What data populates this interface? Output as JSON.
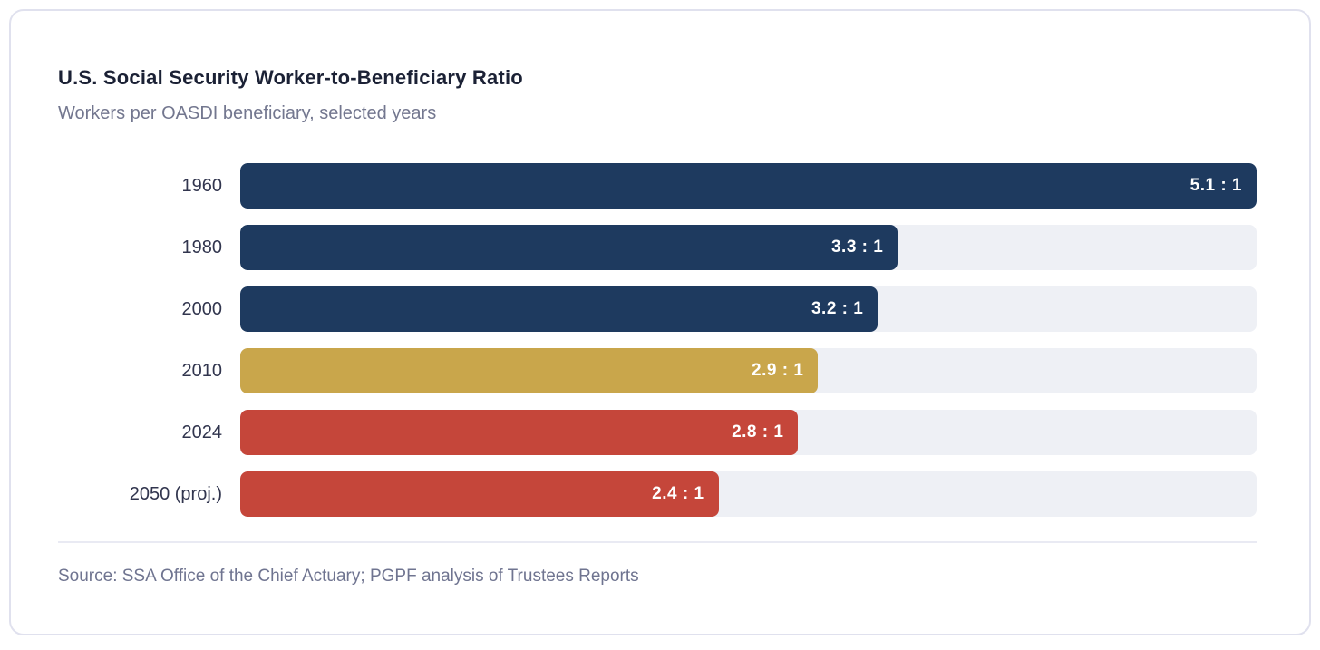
{
  "chart_data": {
    "type": "bar",
    "orientation": "horizontal",
    "title": "U.S. Social Security Worker-to-Beneficiary Ratio",
    "subtitle": "Workers per OASDI beneficiary, selected years",
    "categories": [
      "1960",
      "1980",
      "2000",
      "2010",
      "2024",
      "2050 (proj.)"
    ],
    "values": [
      5.1,
      3.3,
      3.2,
      2.9,
      2.8,
      2.4
    ],
    "value_labels": [
      "5.1 : 1",
      "3.3 : 1",
      "3.2 : 1",
      "2.9 : 1",
      "2.8 : 1",
      "2.4 : 1"
    ],
    "bar_colors": [
      "#1e3a5f",
      "#1e3a5f",
      "#1e3a5f",
      "#c9a64b",
      "#c5463a",
      "#c5463a"
    ],
    "xlim": [
      0,
      5.1
    ],
    "grid": false,
    "legend": false,
    "track_color": "#eef0f5",
    "source": "Source: SSA Office of the Chief Actuary; PGPF analysis of Trustees Reports"
  }
}
